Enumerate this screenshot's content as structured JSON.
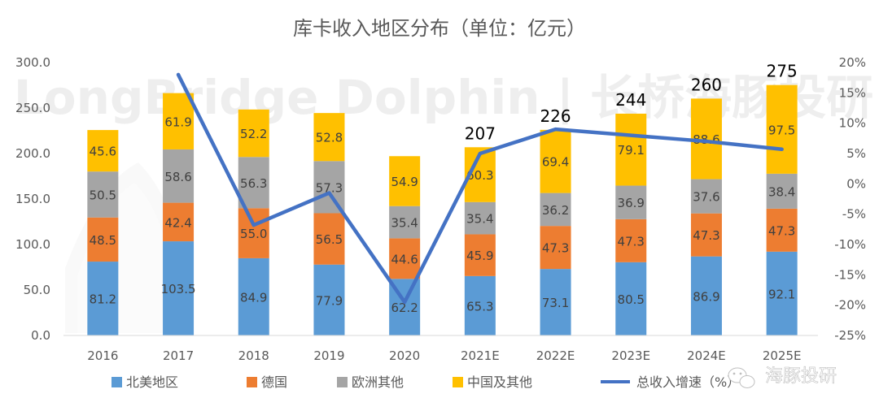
{
  "watermark": {
    "text": "LongBridge Dolphin | 长桥海豚投研",
    "brand": "海豚投研"
  },
  "colors": {
    "north_america": "#5B9BD5",
    "germany": "#ED7D31",
    "europe_other": "#A5A5A5",
    "china_other": "#FFC000",
    "growth_line": "#4472C4"
  },
  "chart_data": {
    "type": "bar",
    "stacked": true,
    "title": "库卡收入地区分布（单位：亿元）",
    "categories": [
      "2016",
      "2017",
      "2018",
      "2019",
      "2020",
      "2021E",
      "2022E",
      "2023E",
      "2024E",
      "2025E"
    ],
    "series": [
      {
        "name": "北美地区",
        "color_key": "north_america",
        "values": [
          81.2,
          103.5,
          84.9,
          77.9,
          62.2,
          65.3,
          73.1,
          80.5,
          86.9,
          92.1
        ]
      },
      {
        "name": "德国",
        "color_key": "germany",
        "values": [
          48.5,
          42.4,
          55.0,
          56.5,
          44.6,
          45.9,
          47.3,
          47.3,
          47.3,
          47.3
        ]
      },
      {
        "name": "欧洲其他",
        "color_key": "europe_other",
        "values": [
          50.5,
          58.6,
          56.3,
          57.3,
          35.4,
          35.4,
          36.2,
          36.9,
          37.6,
          38.4
        ]
      },
      {
        "name": "中国及其他",
        "color_key": "china_other",
        "values": [
          45.6,
          61.9,
          52.2,
          52.8,
          54.9,
          60.3,
          69.4,
          79.1,
          88.6,
          97.5
        ]
      }
    ],
    "segment_labels": [
      [
        "81.2",
        "103.5",
        "84.9",
        "77.9",
        "62.2",
        "65.3",
        "73.1",
        "80.5",
        "86.9",
        "92.1"
      ],
      [
        "48.5",
        "42.4",
        "55.0",
        "56.5",
        "44.6",
        "45.9",
        "47.3",
        "47.3",
        "47.3",
        "47.3"
      ],
      [
        "50.5",
        "58.6",
        "56.3",
        "57.3",
        "35.4",
        "35.4",
        "36.2",
        "36.9",
        "37.6",
        "38.4"
      ],
      [
        "45.6",
        "61.9",
        "52.2",
        "52.8",
        "54.9",
        "60.3",
        "69.4",
        "79.1",
        "88.6",
        "97.5"
      ]
    ],
    "totals": [
      {
        "index": 5,
        "label": "207"
      },
      {
        "index": 6,
        "label": "226"
      },
      {
        "index": 7,
        "label": "244"
      },
      {
        "index": 8,
        "label": "260"
      },
      {
        "index": 9,
        "label": "275"
      }
    ],
    "line_series": {
      "name": "总收入增速（%）",
      "color_key": "growth_line",
      "values": [
        null,
        18.0,
        -6.8,
        -1.5,
        -19.5,
        5.0,
        9.0,
        8.0,
        7.0,
        5.7
      ]
    },
    "y_left": {
      "min": 0,
      "max": 300,
      "ticks": [
        "0.0",
        "50.0",
        "100.0",
        "150.0",
        "200.0",
        "250.0",
        "300.0"
      ]
    },
    "y_right": {
      "min": -25,
      "max": 20,
      "ticks": [
        "-25%",
        "-20%",
        "-15%",
        "-10%",
        "-5%",
        "0%",
        "5%",
        "10%",
        "15%",
        "20%"
      ]
    },
    "legend": [
      "北美地区",
      "德国",
      "欧洲其他",
      "中国及其他",
      "总收入增速（%）"
    ],
    "legend_position": "bottom",
    "grid": false
  }
}
